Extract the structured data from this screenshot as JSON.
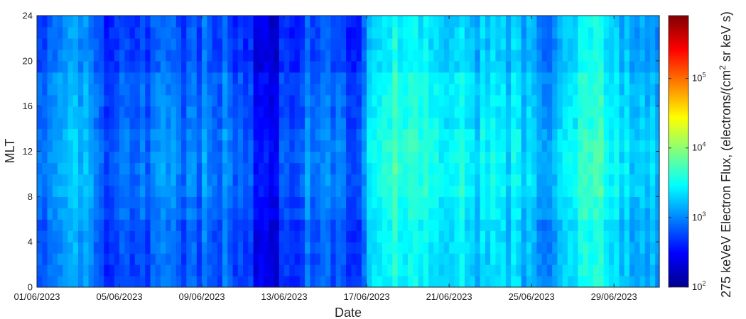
{
  "chart_data": {
    "type": "heatmap",
    "xlabel": "Date",
    "ylabel": "MLT",
    "colorbar_label": "275 keVeV Electron Flux, (electrons/(cm",
    "colorbar_label_sup": "2",
    "colorbar_label_end": " sr keV s)",
    "x_range": [
      "01/06/2023",
      "01/07/2023"
    ],
    "x_tick_labels": [
      "01/06/2023",
      "05/06/2023",
      "09/06/2023",
      "13/06/2023",
      "17/06/2023",
      "21/06/2023",
      "25/06/2023",
      "29/06/2023"
    ],
    "x_tick_days": [
      0,
      4,
      8,
      12,
      16,
      20,
      24,
      28
    ],
    "x_total_days": 30.2,
    "ylim": [
      0,
      24
    ],
    "y_ticks": [
      0,
      4,
      8,
      12,
      16,
      20,
      24
    ],
    "color_scale": "log",
    "color_range": [
      100,
      800000
    ],
    "colorbar_ticks": [
      {
        "value": 100,
        "base": "10",
        "exp": "2"
      },
      {
        "value": 1000,
        "base": "10",
        "exp": "3"
      },
      {
        "value": 10000,
        "base": "10",
        "exp": "4"
      },
      {
        "value": 100000,
        "base": "10",
        "exp": "5"
      }
    ],
    "colormap": "jet",
    "mlt_bin_hours": 1,
    "time_bin_days": 0.25,
    "flux_profile_by_day": [
      {
        "day": 0,
        "log_flux": 2.8
      },
      {
        "day": 1.5,
        "log_flux": 3.15
      },
      {
        "day": 2.6,
        "log_flux": 3.0
      },
      {
        "day": 3.3,
        "log_flux": 2.6
      },
      {
        "day": 4.5,
        "log_flux": 2.9
      },
      {
        "day": 5.5,
        "log_flux": 2.9
      },
      {
        "day": 7.0,
        "log_flux": 2.95
      },
      {
        "day": 8.5,
        "log_flux": 2.95
      },
      {
        "day": 10.0,
        "log_flux": 2.8
      },
      {
        "day": 11.3,
        "log_flux": 2.45
      },
      {
        "day": 12.3,
        "log_flux": 2.8
      },
      {
        "day": 13.0,
        "log_flux": 2.9
      },
      {
        "day": 14.5,
        "log_flux": 2.9
      },
      {
        "day": 15.5,
        "log_flux": 2.75
      },
      {
        "day": 16.1,
        "log_flux": 3.3
      },
      {
        "day": 17.0,
        "log_flux": 3.6
      },
      {
        "day": 18.0,
        "log_flux": 3.55
      },
      {
        "day": 20.0,
        "log_flux": 3.4
      },
      {
        "day": 22.0,
        "log_flux": 3.35
      },
      {
        "day": 23.5,
        "log_flux": 3.3
      },
      {
        "day": 24.6,
        "log_flux": 3.0
      },
      {
        "day": 25.2,
        "log_flux": 3.3
      },
      {
        "day": 26.5,
        "log_flux": 3.5
      },
      {
        "day": 27.5,
        "log_flux": 3.55
      },
      {
        "day": 28.5,
        "log_flux": 3.35
      },
      {
        "day": 29.6,
        "log_flux": 3.15
      },
      {
        "day": 30.2,
        "log_flux": 3.1
      }
    ]
  }
}
